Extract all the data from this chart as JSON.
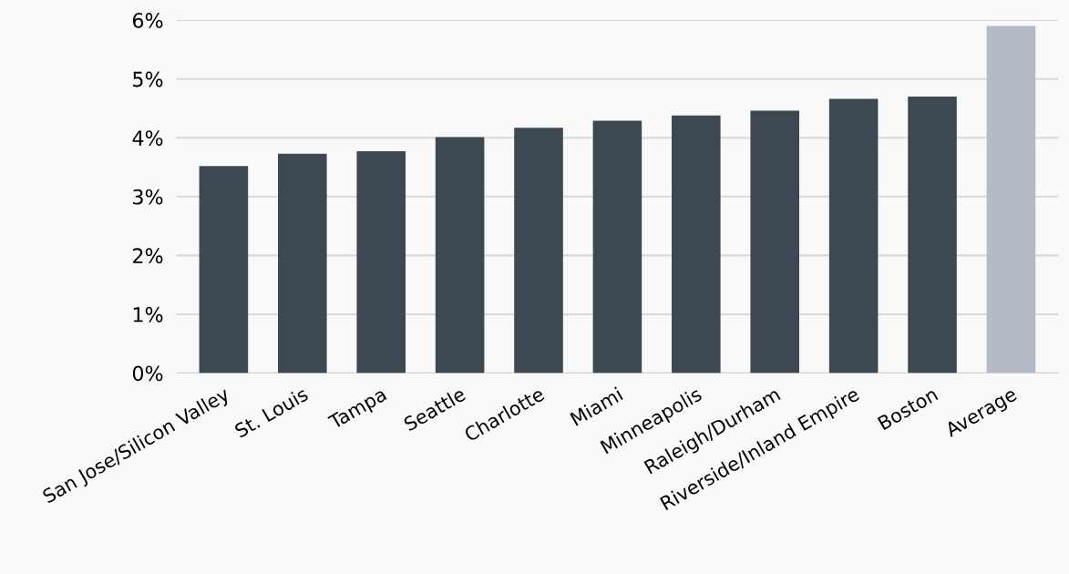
{
  "chart_data": {
    "type": "bar",
    "categories": [
      "San Jose/Silicon Valley",
      "St. Louis",
      "Tampa",
      "Seattle",
      "Charlotte",
      "Miami",
      "Minneapolis",
      "Raleigh/Durham",
      "Riverside/Inland Empire",
      "Boston",
      "Average"
    ],
    "values": [
      3.52,
      3.73,
      3.77,
      4.01,
      4.17,
      4.29,
      4.38,
      4.46,
      4.66,
      4.7,
      5.9
    ],
    "colors": [
      "#3d4852",
      "#3d4852",
      "#3d4852",
      "#3d4852",
      "#3d4852",
      "#3d4852",
      "#3d4852",
      "#3d4852",
      "#3d4852",
      "#3d4852",
      "#b3bcc5"
    ],
    "ylim": [
      0,
      6
    ],
    "yticks": [
      {
        "value": 0,
        "label": "0%"
      },
      {
        "value": 1,
        "label": "1%"
      },
      {
        "value": 2,
        "label": "2%"
      },
      {
        "value": 3,
        "label": "3%"
      },
      {
        "value": 4,
        "label": "4%"
      },
      {
        "value": 5,
        "label": "5%"
      },
      {
        "value": 6,
        "label": "6%"
      }
    ],
    "grid": "y",
    "legend": false
  }
}
